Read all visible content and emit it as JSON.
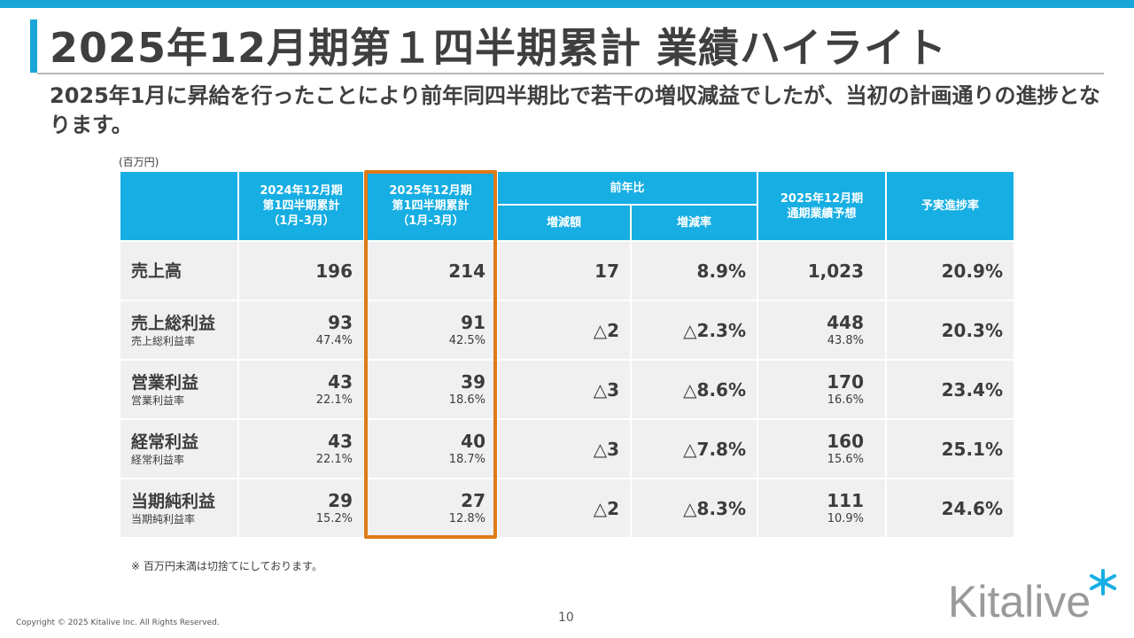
{
  "slide": {
    "title": "2025年12月期第１四半期累計 業績ハイライト",
    "subtitle": "2025年1月に昇給を行ったことにより前年同四半期比で若干の増収減益でしたが、当初の計画通りの進捗となります。",
    "unit": "(百万円)",
    "note": "※ 百万円未満は切捨てにしております。",
    "page_number": "10",
    "copyright": "Copyright © 2025 Kitalive Inc. All Rights Reserved.",
    "logo_text": "Kitalive",
    "accent_color": "#16aee3",
    "highlight_color": "#e07a18"
  },
  "table": {
    "header": {
      "prev_line1": "2024年12月期",
      "prev_line2": "第1四半期累計",
      "prev_line3": "（1月-3月）",
      "cur_line1": "2025年12月期",
      "cur_line2": "第1四半期累計",
      "cur_line3": "（1月-3月）",
      "yoy": "前年比",
      "diff": "増減額",
      "rate": "増減率",
      "fc_line1": "2025年12月期",
      "fc_line2": "通期業績予想",
      "progress": "予実進捗率"
    },
    "rows": [
      {
        "label": "売上高",
        "sublabel": "",
        "prev": "196",
        "prev_ratio": "",
        "cur": "214",
        "cur_ratio": "",
        "diff": "17",
        "rate": "8.9%",
        "forecast": "1,023",
        "forecast_ratio": "",
        "progress": "20.9%"
      },
      {
        "label": "売上総利益",
        "sublabel": "売上総利益率",
        "prev": "93",
        "prev_ratio": "47.4%",
        "cur": "91",
        "cur_ratio": "42.5%",
        "diff": "△2",
        "rate": "△2.3%",
        "forecast": "448",
        "forecast_ratio": "43.8%",
        "progress": "20.3%"
      },
      {
        "label": "営業利益",
        "sublabel": "営業利益率",
        "prev": "43",
        "prev_ratio": "22.1%",
        "cur": "39",
        "cur_ratio": "18.6%",
        "diff": "△3",
        "rate": "△8.6%",
        "forecast": "170",
        "forecast_ratio": "16.6%",
        "progress": "23.4%"
      },
      {
        "label": "経常利益",
        "sublabel": "経常利益率",
        "prev": "43",
        "prev_ratio": "22.1%",
        "cur": "40",
        "cur_ratio": "18.7%",
        "diff": "△3",
        "rate": "△7.8%",
        "forecast": "160",
        "forecast_ratio": "15.6%",
        "progress": "25.1%"
      },
      {
        "label": "当期純利益",
        "sublabel": "当期純利益率",
        "prev": "29",
        "prev_ratio": "15.2%",
        "cur": "27",
        "cur_ratio": "12.8%",
        "diff": "△2",
        "rate": "△8.3%",
        "forecast": "111",
        "forecast_ratio": "10.9%",
        "progress": "24.6%"
      }
    ]
  }
}
